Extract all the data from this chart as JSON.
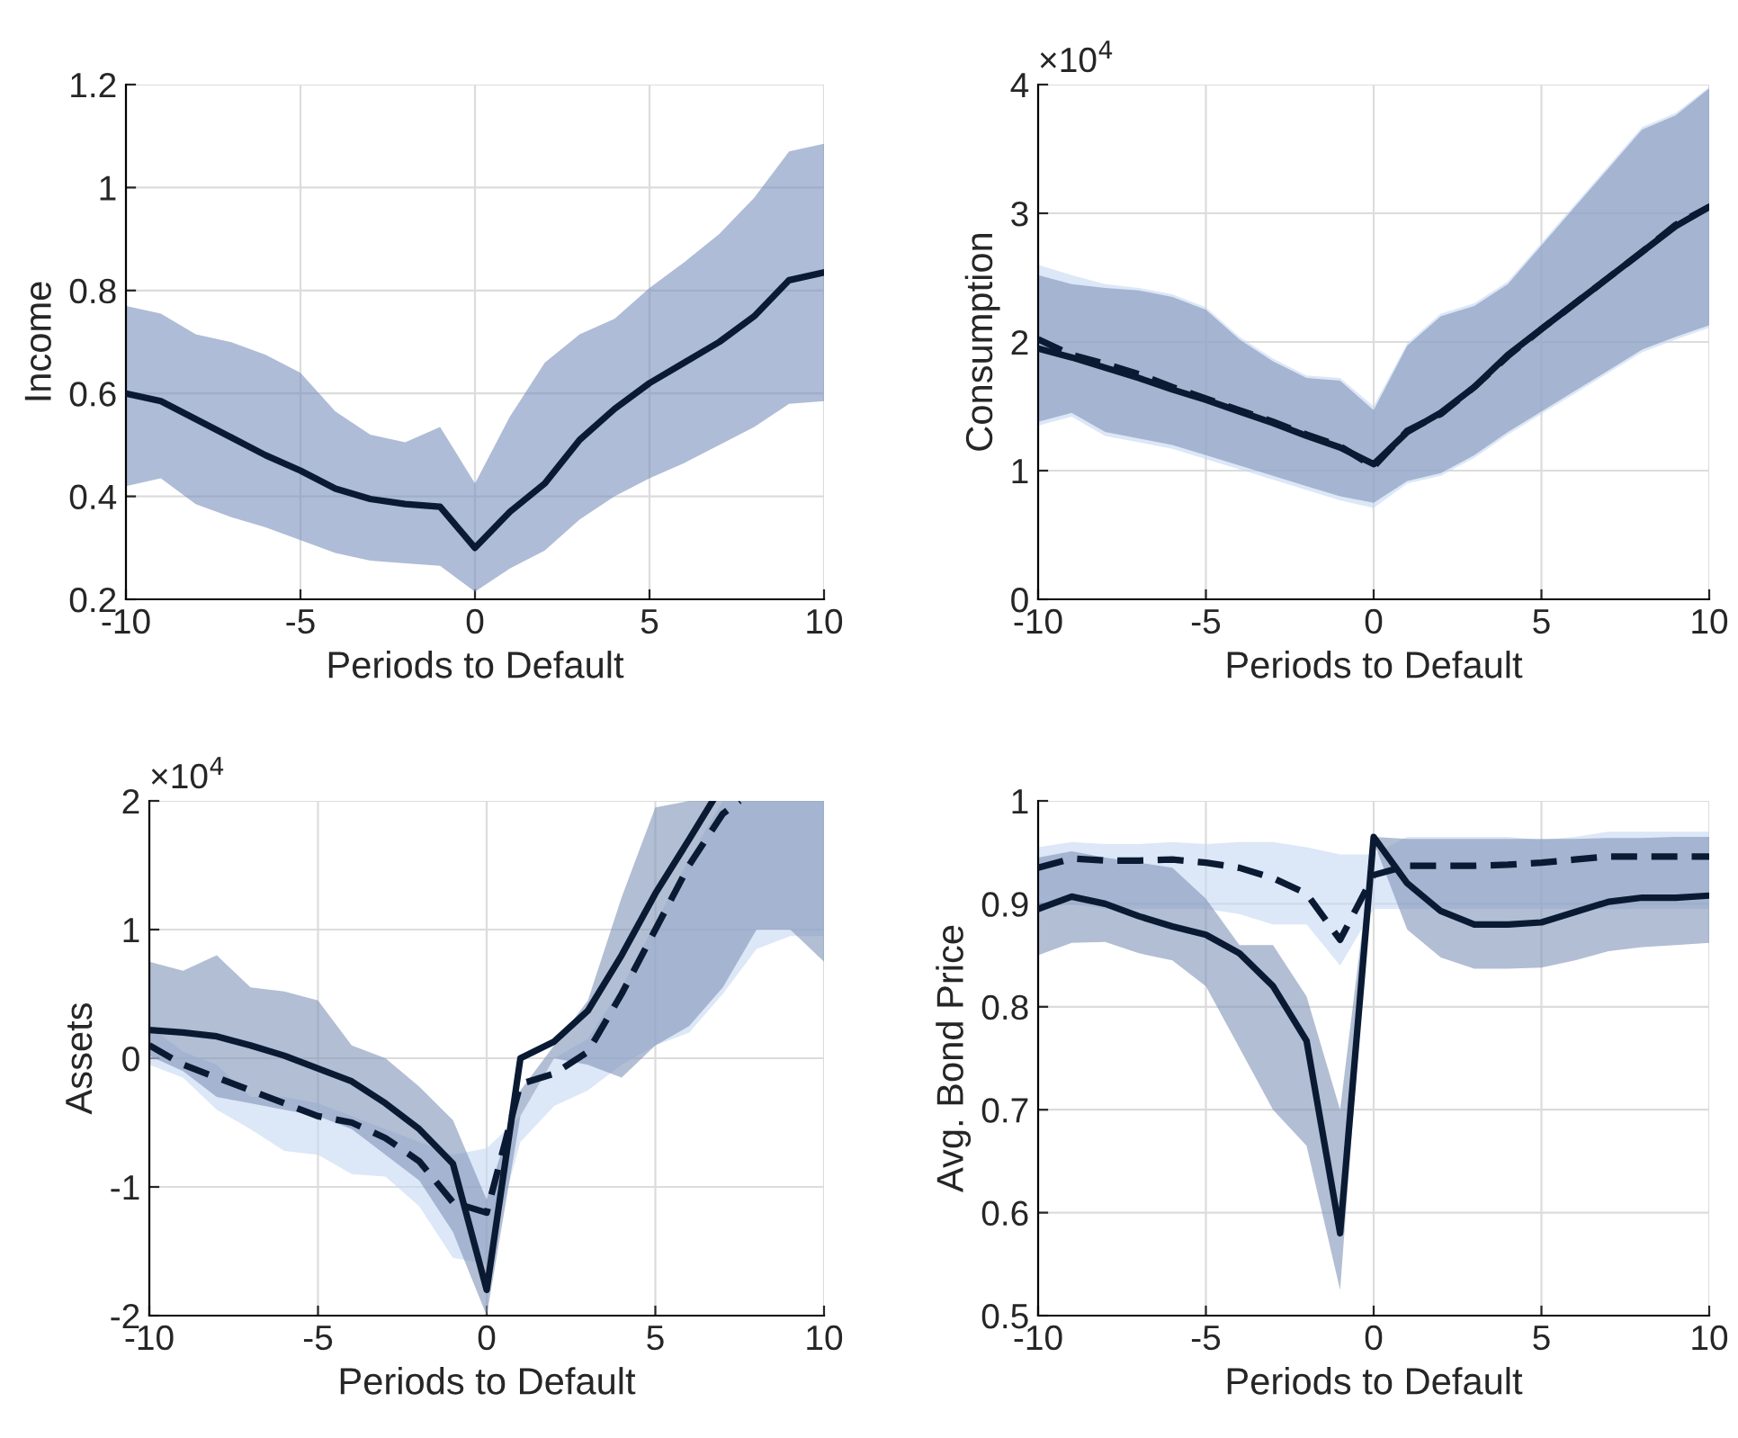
{
  "chart_data": [
    {
      "type": "line",
      "ylabel": "Income",
      "xlabel": "Periods to Default",
      "x": [
        -10,
        -9,
        -8,
        -7,
        -6,
        -5,
        -4,
        -3,
        -2,
        -1,
        0,
        1,
        2,
        3,
        4,
        5,
        6,
        7,
        8,
        9,
        10
      ],
      "xlim": [
        -10,
        10
      ],
      "xticks": [
        -10,
        -5,
        0,
        5,
        10
      ],
      "ylim": [
        0.2,
        1.2
      ],
      "yticks": [
        0.2,
        0.4,
        0.6,
        0.8,
        1,
        1.2
      ],
      "grid": true,
      "series": [
        {
          "color": "#7890bd",
          "values": [
            null,
            null,
            null,
            null,
            null,
            null,
            null,
            null,
            null,
            null,
            null,
            null,
            null,
            null,
            null,
            null,
            null,
            null,
            null,
            null,
            null
          ],
          "upper": [
            0.77,
            0.755,
            0.715,
            0.7,
            0.675,
            0.64,
            0.565,
            0.52,
            0.505,
            0.535,
            0.425,
            0.555,
            0.66,
            0.715,
            0.745,
            0.805,
            0.855,
            0.91,
            0.98,
            1.07,
            1.085
          ],
          "lower": [
            0.42,
            0.435,
            0.385,
            0.36,
            0.34,
            0.315,
            0.29,
            0.275,
            0.27,
            0.265,
            0.215,
            0.26,
            0.295,
            0.355,
            0.4,
            0.435,
            0.465,
            0.5,
            0.535,
            0.58,
            0.585
          ]
        },
        {
          "color": "#0b1a33",
          "line_style": "solid",
          "values": [
            0.6,
            0.585,
            0.55,
            0.515,
            0.48,
            0.45,
            0.415,
            0.395,
            0.385,
            0.38,
            0.3,
            0.37,
            0.425,
            0.51,
            0.57,
            0.62,
            0.66,
            0.7,
            0.75,
            0.82,
            0.835
          ]
        }
      ]
    },
    {
      "type": "line",
      "ylabel": "Consumption",
      "xlabel": "Periods to Default",
      "annotations": [
        "×10$^{4}$"
      ],
      "x": [
        -10,
        -9,
        -8,
        -7,
        -6,
        -5,
        -4,
        -3,
        -2,
        -1,
        0,
        1,
        2,
        3,
        4,
        5,
        6,
        7,
        8,
        9,
        10
      ],
      "xlim": [
        -10,
        10
      ],
      "xticks": [
        -10,
        -5,
        0,
        5,
        10
      ],
      "ylim": [
        0,
        4
      ],
      "yticks": [
        0,
        1,
        2,
        3,
        4
      ],
      "grid": true,
      "series": [
        {
          "color": "#c4d7f2",
          "values": [
            null,
            null,
            null,
            null,
            null,
            null,
            null,
            null,
            null,
            null,
            null,
            null,
            null,
            null,
            null,
            null,
            null,
            null,
            null,
            null,
            null
          ],
          "upper": [
            2.6,
            2.52,
            2.45,
            2.42,
            2.37,
            2.27,
            2.04,
            1.87,
            1.74,
            1.72,
            1.5,
            1.99,
            2.22,
            2.3,
            2.47,
            2.77,
            3.07,
            3.37,
            3.67,
            3.78,
            3.98
          ],
          "lower": [
            1.35,
            1.42,
            1.27,
            1.22,
            1.17,
            1.09,
            1.01,
            0.93,
            0.85,
            0.77,
            0.71,
            0.9,
            0.96,
            1.1,
            1.28,
            1.44,
            1.6,
            1.76,
            1.92,
            2.02,
            2.11
          ]
        },
        {
          "color": "#7f93b8",
          "values": [
            null,
            null,
            null,
            null,
            null,
            null,
            null,
            null,
            null,
            null,
            null,
            null,
            null,
            null,
            null,
            null,
            null,
            null,
            null,
            null,
            null
          ],
          "upper": [
            2.52,
            2.45,
            2.42,
            2.4,
            2.35,
            2.25,
            2.02,
            1.85,
            1.72,
            1.7,
            1.47,
            1.97,
            2.2,
            2.28,
            2.45,
            2.75,
            3.05,
            3.35,
            3.65,
            3.76,
            3.97
          ],
          "lower": [
            1.38,
            1.45,
            1.3,
            1.25,
            1.2,
            1.12,
            1.04,
            0.96,
            0.88,
            0.8,
            0.75,
            0.92,
            0.98,
            1.12,
            1.3,
            1.46,
            1.62,
            1.78,
            1.94,
            2.04,
            2.13
          ]
        },
        {
          "color": "#0b1a33",
          "line_style": "dashed",
          "values": [
            2.02,
            1.9,
            1.83,
            1.75,
            1.65,
            1.56,
            1.47,
            1.38,
            1.28,
            1.19,
            1.03,
            1.31,
            1.44,
            1.65,
            1.89,
            2.1,
            2.3,
            2.5,
            2.7,
            2.91,
            3.05
          ]
        },
        {
          "color": "#0b1a33",
          "line_style": "solid",
          "values": [
            1.95,
            1.88,
            1.8,
            1.72,
            1.63,
            1.55,
            1.46,
            1.37,
            1.27,
            1.18,
            1.05,
            1.3,
            1.45,
            1.65,
            1.9,
            2.1,
            2.3,
            2.5,
            2.7,
            2.9,
            3.05
          ]
        }
      ]
    },
    {
      "type": "line",
      "ylabel": "Assets",
      "xlabel": "Periods to Default",
      "annotations": [
        "×10$^{4}$"
      ],
      "x": [
        -10,
        -9,
        -8,
        -7,
        -6,
        -5,
        -4,
        -3,
        -2,
        -1,
        0,
        1,
        2,
        3,
        4,
        5,
        6,
        7,
        8,
        9,
        10
      ],
      "xlim": [
        -10,
        10
      ],
      "xticks": [
        -10,
        -5,
        0,
        5,
        10
      ],
      "ylim": [
        -2,
        2
      ],
      "yticks": [
        -2,
        -1,
        0,
        1,
        2
      ],
      "grid": true,
      "series": [
        {
          "color": "#c4d7f2",
          "values": [
            null,
            null,
            null,
            null,
            null,
            null,
            null,
            null,
            null,
            null,
            null,
            null,
            null,
            null,
            null,
            null,
            null,
            null,
            null,
            null,
            null
          ],
          "upper": [
            0.25,
            0.05,
            -0.05,
            -0.3,
            -0.3,
            -0.35,
            -0.45,
            -0.55,
            -0.65,
            -0.75,
            -0.7,
            -0.45,
            0.0,
            0.15,
            0.55,
            1.05,
            1.55,
            2.0,
            2.0,
            2.0,
            2.0
          ],
          "lower": [
            -0.05,
            -0.15,
            -0.4,
            -0.55,
            -0.72,
            -0.75,
            -0.9,
            -0.92,
            -1.15,
            -1.55,
            -1.6,
            -0.65,
            -0.37,
            -0.25,
            -0.05,
            0.1,
            0.2,
            0.5,
            0.85,
            0.95,
            0.95
          ]
        },
        {
          "color": "#7f93b8",
          "values": [
            null,
            null,
            null,
            null,
            null,
            null,
            null,
            null,
            null,
            null,
            null,
            null,
            null,
            null,
            null,
            null,
            null,
            null,
            null,
            null,
            null
          ],
          "upper": [
            0.75,
            0.68,
            0.8,
            0.55,
            0.52,
            0.45,
            0.1,
            0.0,
            -0.22,
            -0.48,
            -1.1,
            -0.25,
            0.1,
            0.45,
            1.25,
            1.95,
            2.0,
            2.0,
            2.0,
            2.0,
            2.0
          ],
          "lower": [
            0.02,
            -0.1,
            -0.3,
            -0.35,
            -0.4,
            -0.45,
            -0.55,
            -0.75,
            -0.95,
            -1.35,
            -2.0,
            -0.45,
            0.0,
            -0.05,
            -0.15,
            0.1,
            0.25,
            0.55,
            1.0,
            1.0,
            0.75
          ]
        },
        {
          "color": "#0b1a33",
          "line_style": "dashed",
          "x": [
            -10,
            -9,
            -8,
            -7,
            -6,
            -5,
            -4,
            -3,
            -2,
            -1,
            0,
            1,
            2,
            3,
            4,
            5,
            6,
            7,
            7.5
          ],
          "values": [
            0.1,
            -0.05,
            -0.15,
            -0.25,
            -0.35,
            -0.45,
            -0.5,
            -0.62,
            -0.8,
            -1.12,
            -1.2,
            -0.2,
            -0.12,
            0.05,
            0.5,
            1.0,
            1.5,
            1.9,
            2.0
          ]
        },
        {
          "color": "#0b1a33",
          "line_style": "solid",
          "x": [
            -10,
            -9,
            -8,
            -7,
            -6,
            -5,
            -4,
            -3,
            -2,
            -1,
            0,
            1,
            2,
            3,
            4,
            5,
            6,
            6.7
          ],
          "values": [
            0.22,
            0.2,
            0.17,
            0.1,
            0.02,
            -0.08,
            -0.18,
            -0.35,
            -0.55,
            -0.82,
            -1.8,
            0.0,
            0.13,
            0.37,
            0.8,
            1.28,
            1.7,
            2.0
          ]
        }
      ]
    },
    {
      "type": "line",
      "ylabel": "Avg. Bond Price",
      "xlabel": "Periods to Default",
      "x": [
        -10,
        -9,
        -8,
        -7,
        -6,
        -5,
        -4,
        -3,
        -2,
        -1,
        0,
        1,
        2,
        3,
        4,
        5,
        6,
        7,
        8,
        9,
        10
      ],
      "xlim": [
        -10,
        10
      ],
      "xticks": [
        -10,
        -5,
        0,
        5,
        10
      ],
      "ylim": [
        0.5,
        1
      ],
      "yticks": [
        0.5,
        0.6,
        0.7,
        0.8,
        0.9,
        1
      ],
      "grid": true,
      "series": [
        {
          "color": "#c4d7f2",
          "values": [
            null,
            null,
            null,
            null,
            null,
            null,
            null,
            null,
            null,
            null,
            null,
            null,
            null,
            null,
            null,
            null,
            null,
            null,
            null,
            null,
            null
          ],
          "upper": [
            0.955,
            0.96,
            0.958,
            0.958,
            0.96,
            0.958,
            0.96,
            0.96,
            0.955,
            0.948,
            0.948,
            0.965,
            0.965,
            0.965,
            0.965,
            0.962,
            0.965,
            0.97,
            0.97,
            0.97,
            0.97
          ],
          "lower": [
            0.895,
            0.9,
            0.895,
            0.895,
            0.895,
            0.895,
            0.89,
            0.88,
            0.88,
            0.84,
            0.895,
            0.895,
            0.895,
            0.895,
            0.895,
            0.895,
            0.895,
            0.895,
            0.895,
            0.895,
            0.895
          ]
        },
        {
          "color": "#7f93b8",
          "values": [
            null,
            null,
            null,
            null,
            null,
            null,
            null,
            null,
            null,
            null,
            null,
            null,
            null,
            null,
            null,
            null,
            null,
            null,
            null,
            null,
            null
          ],
          "upper": [
            0.945,
            0.951,
            0.945,
            0.94,
            0.935,
            0.905,
            0.86,
            0.86,
            0.81,
            0.7,
            0.965,
            0.963,
            0.963,
            0.963,
            0.963,
            0.963,
            0.963,
            0.964,
            0.964,
            0.965,
            0.965
          ],
          "lower": [
            0.85,
            0.862,
            0.863,
            0.852,
            0.845,
            0.82,
            0.76,
            0.7,
            0.665,
            0.525,
            0.96,
            0.875,
            0.848,
            0.837,
            0.837,
            0.838,
            0.845,
            0.854,
            0.858,
            0.86,
            0.862
          ]
        },
        {
          "color": "#0b1a33",
          "line_style": "dashed",
          "values": [
            0.935,
            0.944,
            0.942,
            0.942,
            0.943,
            0.94,
            0.935,
            0.925,
            0.91,
            0.865,
            0.928,
            0.937,
            0.937,
            0.937,
            0.938,
            0.94,
            0.943,
            0.946,
            0.946,
            0.946,
            0.946
          ]
        },
        {
          "color": "#0b1a33",
          "line_style": "solid",
          "values": [
            0.895,
            0.907,
            0.9,
            0.888,
            0.878,
            0.87,
            0.852,
            0.82,
            0.767,
            0.58,
            0.965,
            0.92,
            0.893,
            0.88,
            0.88,
            0.882,
            0.892,
            0.902,
            0.906,
            0.906,
            0.908
          ]
        }
      ]
    }
  ]
}
